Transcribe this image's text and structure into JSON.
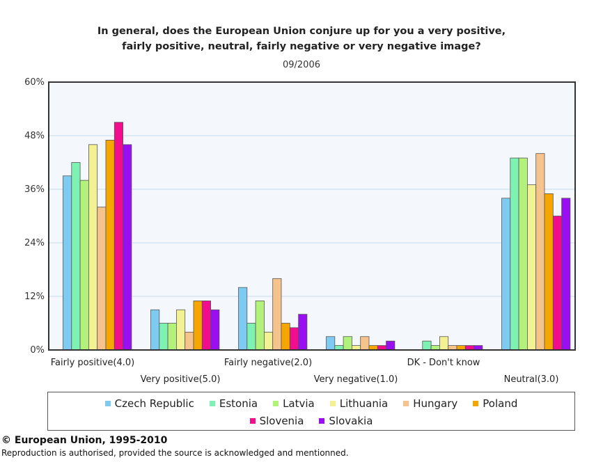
{
  "chart_data": {
    "type": "bar",
    "title_lines": [
      "In general, does the European Union conjure up for you a very positive,",
      "fairly positive, neutral, fairly negative or very negative image?"
    ],
    "subtitle": "09/2006",
    "categories": [
      "Fairly positive(4.0)",
      "Very positive(5.0)",
      "Fairly negative(2.0)",
      "Very negative(1.0)",
      "DK - Don't know",
      "Neutral(3.0)"
    ],
    "y_ticks": [
      "0%",
      "12%",
      "24%",
      "36%",
      "48%",
      "60%"
    ],
    "ylim": [
      0,
      60
    ],
    "grid": true,
    "legend_position": "bottom",
    "series": [
      {
        "name": "Czech Republic",
        "color": "#7fcaf1",
        "values": [
          39,
          9,
          14,
          3,
          0,
          34
        ]
      },
      {
        "name": "Estonia",
        "color": "#7ef2b2",
        "values": [
          42,
          6,
          6,
          1,
          2,
          43
        ]
      },
      {
        "name": "Latvia",
        "color": "#b2f27a",
        "values": [
          38,
          6,
          11,
          3,
          1,
          43
        ]
      },
      {
        "name": "Lithuania",
        "color": "#f2f294",
        "values": [
          46,
          9,
          4,
          1,
          3,
          37
        ]
      },
      {
        "name": "Hungary",
        "color": "#f6c38d",
        "values": [
          32,
          4,
          16,
          3,
          1,
          44
        ]
      },
      {
        "name": "Poland",
        "color": "#f5a600",
        "values": [
          47,
          11,
          6,
          1,
          1,
          35
        ]
      },
      {
        "name": "Slovenia",
        "color": "#f20d8c",
        "values": [
          51,
          11,
          5,
          1,
          1,
          30
        ]
      },
      {
        "name": "Slovakia",
        "color": "#9a0ef2",
        "values": [
          46,
          9,
          8,
          2,
          1,
          34
        ]
      }
    ]
  },
  "footer": {
    "copyright": "© European Union, 1995-2010",
    "note": "Reproduction is authorised, provided the source is acknowledged and mentionned."
  }
}
